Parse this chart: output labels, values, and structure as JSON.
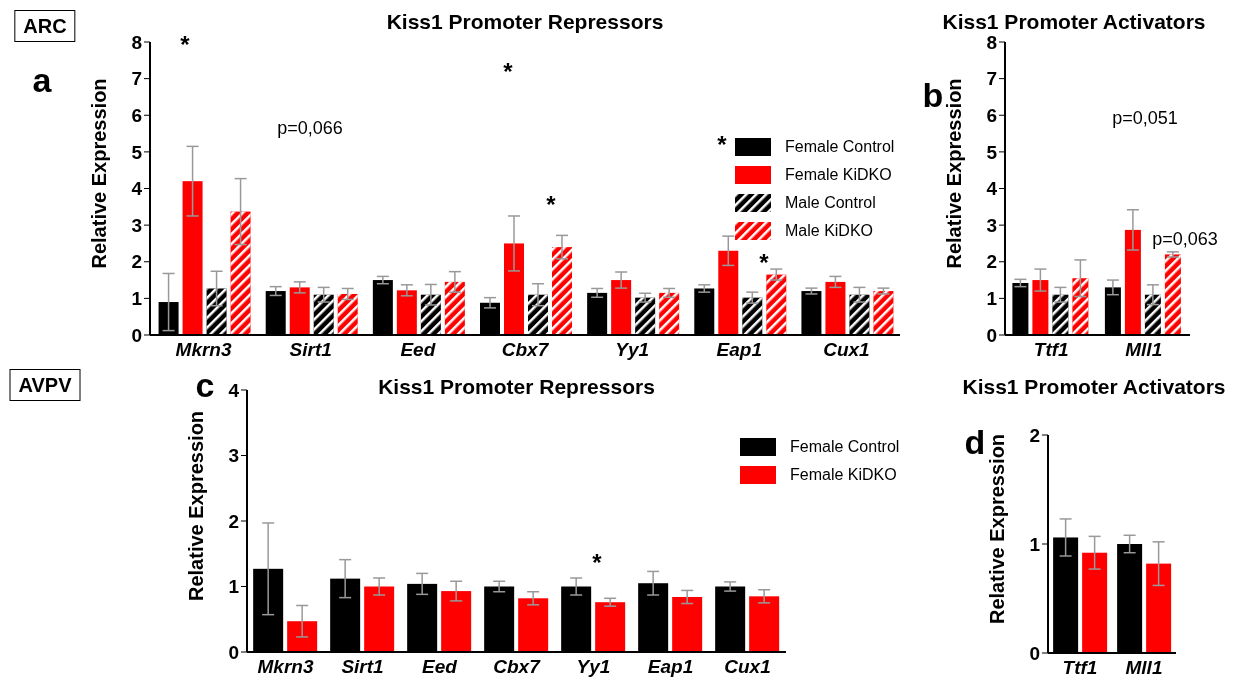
{
  "chart_data": [
    {
      "type": "bar",
      "title": "Kiss1 Promoter Repressors",
      "ylabel": "Relative Expression",
      "categories": [
        "Mkrn3",
        "Sirt1",
        "Eed",
        "Cbx7",
        "Yy1",
        "Eap1",
        "Cux1"
      ],
      "ylim": [
        0,
        8
      ],
      "yticks": [
        0,
        1,
        2,
        3,
        4,
        5,
        6,
        7,
        8
      ],
      "legend": "right",
      "grid": false,
      "series": [
        {
          "name": "Female Control",
          "color": "#000000",
          "values": [
            0.9,
            1.2,
            1.5,
            0.88,
            1.15,
            1.27,
            1.2
          ],
          "errors": [
            0.78,
            0.12,
            0.1,
            0.14,
            0.12,
            0.1,
            0.08
          ]
        },
        {
          "name": "Female KiDKO",
          "color": "#ff0000",
          "values": [
            4.2,
            1.3,
            1.22,
            2.5,
            1.5,
            2.3,
            1.45
          ],
          "errors": [
            0.95,
            0.15,
            0.15,
            0.75,
            0.22,
            0.4,
            0.15
          ]
        },
        {
          "name": "Male Control",
          "color": "#000000",
          "values": [
            1.27,
            1.1,
            1.1,
            1.1,
            1.02,
            1.02,
            1.1
          ],
          "errors": [
            0.47,
            0.2,
            0.28,
            0.3,
            0.12,
            0.15,
            0.2
          ]
        },
        {
          "name": "Male KiDKO",
          "color": "#ff0000",
          "values": [
            3.37,
            1.12,
            1.45,
            2.4,
            1.15,
            1.65,
            1.2
          ],
          "errors": [
            0.9,
            0.15,
            0.28,
            0.32,
            0.12,
            0.15,
            0.08
          ]
        }
      ],
      "annotations": [
        "ARC",
        "a",
        "*",
        "p=0,066",
        "*",
        "*",
        "*",
        "*"
      ]
    },
    {
      "type": "bar",
      "title": "Kiss1 Promoter Activators",
      "ylabel": "Relative Expression",
      "categories": [
        "Ttf1",
        "Mll1"
      ],
      "ylim": [
        0,
        8
      ],
      "yticks": [
        0,
        1,
        2,
        3,
        4,
        5,
        6,
        7,
        8
      ],
      "grid": false,
      "series": [
        {
          "color": "#000000",
          "values": [
            1.42,
            1.3
          ],
          "errors": [
            0.1,
            0.2
          ]
        },
        {
          "color": "#ff0000",
          "values": [
            1.5,
            2.87
          ],
          "errors": [
            0.3,
            0.55
          ]
        },
        {
          "color": "#000000",
          "values": [
            1.1,
            1.1
          ],
          "errors": [
            0.2,
            0.27
          ]
        },
        {
          "color": "#ff0000",
          "values": [
            1.55,
            2.2
          ],
          "errors": [
            0.5,
            0.07
          ]
        }
      ],
      "annotations": [
        "b",
        "p=0,051",
        "p=0,063"
      ]
    },
    {
      "type": "bar",
      "title": "Kiss1 Promoter Repressors",
      "ylabel": "Relative Expression",
      "categories": [
        "Mkrn3",
        "Sirt1",
        "Eed",
        "Cbx7",
        "Yy1",
        "Eap1",
        "Cux1"
      ],
      "ylim": [
        0,
        4
      ],
      "yticks": [
        0,
        1,
        2,
        3,
        4
      ],
      "legend": "top right",
      "grid": false,
      "series": [
        {
          "name": "Female Control",
          "color": "#000000",
          "values": [
            1.27,
            1.12,
            1.04,
            1.0,
            1.0,
            1.05,
            1.0
          ],
          "errors": [
            0.7,
            0.29,
            0.16,
            0.08,
            0.13,
            0.18,
            0.07
          ]
        },
        {
          "name": "Female KiDKO",
          "color": "#ff0000",
          "values": [
            0.47,
            1.0,
            0.93,
            0.82,
            0.76,
            0.84,
            0.85
          ],
          "errors": [
            0.24,
            0.13,
            0.15,
            0.1,
            0.06,
            0.1,
            0.1
          ]
        }
      ],
      "annotations": [
        "AVPV",
        "c",
        "*"
      ]
    },
    {
      "type": "bar",
      "title": "Kiss1 Promoter Activators",
      "ylabel": "Relative Expression",
      "categories": [
        "Ttf1",
        "Mll1"
      ],
      "ylim": [
        0,
        2
      ],
      "yticks": [
        0,
        1,
        2
      ],
      "grid": false,
      "series": [
        {
          "color": "#000000",
          "values": [
            1.06,
            1.0
          ],
          "errors": [
            0.17,
            0.08
          ]
        },
        {
          "color": "#ff0000",
          "values": [
            0.92,
            0.82
          ],
          "errors": [
            0.15,
            0.2
          ]
        }
      ],
      "annotations": [
        "d"
      ]
    }
  ]
}
